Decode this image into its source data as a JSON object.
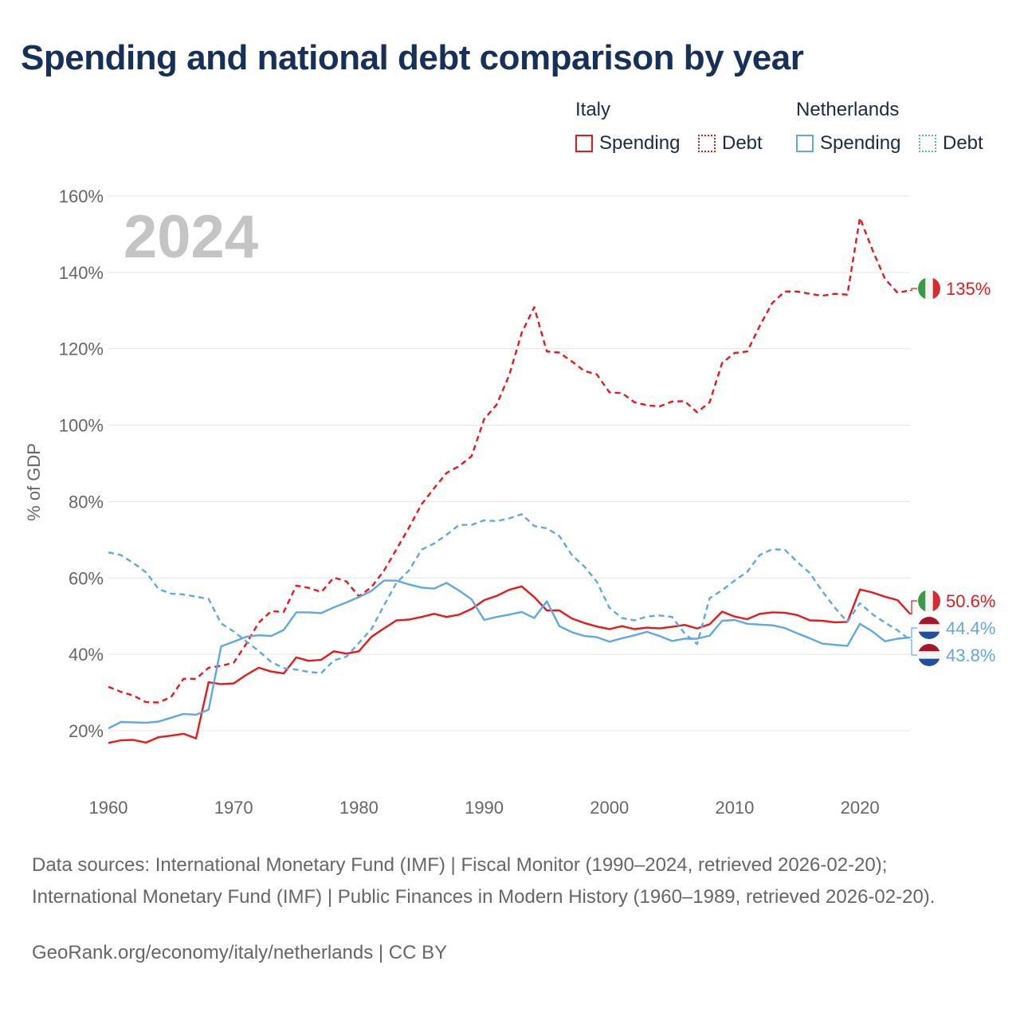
{
  "title": "Spending and national debt comparison by year",
  "legend": {
    "groups": [
      {
        "name": "Italy",
        "items": [
          {
            "label": "Spending",
            "style": "solid",
            "color": "#e8191a"
          },
          {
            "label": "Debt",
            "style": "dotted",
            "color": "#e8191a"
          }
        ]
      },
      {
        "name": "Netherlands",
        "items": [
          {
            "label": "Spending",
            "style": "solid",
            "color": "#5fa8e4"
          },
          {
            "label": "Debt",
            "style": "dotted",
            "color": "#5fa8e4"
          }
        ]
      }
    ]
  },
  "chart_data": {
    "type": "line",
    "year_label": "2024",
    "ylabel": "% of GDP",
    "xlim": [
      1960,
      2024
    ],
    "ylim": [
      10,
      160
    ],
    "x_ticks": [
      1960,
      1970,
      1980,
      1990,
      2000,
      2010,
      2020
    ],
    "y_ticks": [
      20,
      40,
      60,
      80,
      100,
      120,
      140,
      160
    ],
    "y_tick_labels": [
      "20%",
      "40%",
      "60%",
      "80%",
      "100%",
      "120%",
      "140%",
      "160%"
    ],
    "x": [
      1960,
      1961,
      1962,
      1963,
      1964,
      1965,
      1966,
      1967,
      1968,
      1969,
      1970,
      1971,
      1972,
      1973,
      1974,
      1975,
      1976,
      1977,
      1978,
      1979,
      1980,
      1981,
      1982,
      1983,
      1984,
      1985,
      1986,
      1987,
      1988,
      1989,
      1990,
      1991,
      1992,
      1993,
      1994,
      1995,
      1996,
      1997,
      1998,
      1999,
      2000,
      2001,
      2002,
      2003,
      2004,
      2005,
      2006,
      2007,
      2008,
      2009,
      2010,
      2011,
      2012,
      2013,
      2014,
      2015,
      2016,
      2017,
      2018,
      2019,
      2020,
      2021,
      2022,
      2023,
      2024
    ],
    "series": [
      {
        "name": "Italy Debt",
        "country": "Italy",
        "metric": "Debt",
        "color": "#e8191a",
        "dash": "dashed",
        "values": [
          31.5,
          30.2,
          29.2,
          27.5,
          27.4,
          28.8,
          33.6,
          33.6,
          36.5,
          37.0,
          37.8,
          42.7,
          48.3,
          51.3,
          51.1,
          58.0,
          57.4,
          56.3,
          60.1,
          59.1,
          55.2,
          57.6,
          61.9,
          67.5,
          73.2,
          79.3,
          83.5,
          87.5,
          89.3,
          91.9,
          101.6,
          105.4,
          113.1,
          124.2,
          130.9,
          119.3,
          119.0,
          116.7,
          114.2,
          113.3,
          108.6,
          108.4,
          106.0,
          105.2,
          104.9,
          106.2,
          106.3,
          103.4,
          106.0,
          116.3,
          118.9,
          119.3,
          126.0,
          132.0,
          135.0,
          135.0,
          134.4,
          133.9,
          134.4,
          134.2,
          154.3,
          145.9,
          138.3,
          134.7,
          135.3
        ],
        "end_label": "135%"
      },
      {
        "name": "Italy Spending",
        "country": "Italy",
        "metric": "Spending",
        "color": "#e8191a",
        "dash": "solid",
        "values": [
          16.8,
          17.5,
          17.6,
          16.9,
          18.3,
          18.7,
          19.2,
          18.0,
          32.7,
          32.2,
          32.4,
          34.6,
          36.5,
          35.5,
          35.0,
          39.2,
          38.3,
          38.6,
          40.8,
          40.2,
          40.8,
          44.6,
          46.8,
          48.9,
          49.1,
          49.8,
          50.6,
          49.8,
          50.4,
          51.9,
          54.2,
          55.3,
          56.9,
          57.8,
          55.0,
          51.5,
          51.5,
          49.4,
          48.2,
          47.3,
          46.6,
          47.4,
          46.6,
          47.0,
          46.8,
          47.2,
          47.7,
          46.8,
          47.9,
          51.2,
          49.9,
          49.2,
          50.6,
          51.0,
          50.9,
          50.3,
          48.9,
          48.8,
          48.4,
          48.5,
          57.0,
          56.2,
          55.1,
          54.2,
          50.6
        ],
        "end_label": "50.6%"
      },
      {
        "name": "Netherlands Debt",
        "country": "Netherlands",
        "metric": "Debt",
        "color": "#5fa8e4",
        "dash": "dashed",
        "values": [
          66.7,
          66.0,
          63.9,
          61.5,
          57.1,
          55.9,
          55.7,
          55.1,
          54.5,
          48.1,
          46.0,
          43.4,
          40.9,
          38.0,
          36.4,
          36.0,
          35.4,
          35.1,
          38.4,
          39.4,
          43.0,
          46.6,
          52.8,
          58.7,
          62.0,
          67.4,
          69.0,
          71.3,
          73.9,
          73.9,
          75.1,
          74.9,
          75.6,
          76.7,
          73.6,
          73.0,
          71.0,
          66.0,
          63.0,
          59.0,
          52.2,
          49.5,
          48.9,
          49.9,
          50.2,
          49.8,
          45.5,
          42.7,
          54.7,
          56.8,
          59.3,
          61.6,
          66.0,
          67.5,
          67.4,
          64.2,
          61.3,
          56.5,
          52.2,
          48.5,
          53.4,
          50.5,
          48.3,
          46.3,
          43.8
        ],
        "end_label": "43.8%"
      },
      {
        "name": "Netherlands Spending",
        "country": "Netherlands",
        "metric": "Spending",
        "color": "#5fa8e4",
        "dash": "solid",
        "values": [
          20.6,
          22.3,
          22.2,
          22.1,
          22.4,
          23.4,
          24.4,
          24.2,
          25.5,
          42.1,
          43.3,
          44.6,
          45.0,
          44.8,
          46.4,
          51.0,
          51.0,
          50.8,
          52.3,
          53.6,
          55.0,
          56.6,
          59.3,
          59.3,
          58.3,
          57.5,
          57.2,
          58.7,
          56.7,
          54.4,
          49.0,
          49.8,
          50.4,
          51.1,
          49.5,
          53.9,
          47.4,
          45.8,
          44.8,
          44.5,
          43.3,
          44.2,
          45.0,
          45.9,
          44.8,
          43.5,
          44.1,
          44.1,
          44.9,
          48.8,
          49.0,
          48.0,
          47.8,
          47.6,
          46.9,
          45.5,
          44.2,
          42.8,
          42.5,
          42.2,
          48.0,
          46.0,
          43.4,
          44.1,
          44.4
        ],
        "end_label": "44.4%"
      }
    ]
  },
  "footer": {
    "sources": "Data sources: International Monetary Fund (IMF) | Fiscal Monitor (1990–2024, retrieved 2026-02-20); International Monetary Fund (IMF) | Public Finances in Modern History (1960–1989, retrieved 2026-02-20).",
    "credit": "GeoRank.org/economy/italy/netherlands | CC BY"
  }
}
